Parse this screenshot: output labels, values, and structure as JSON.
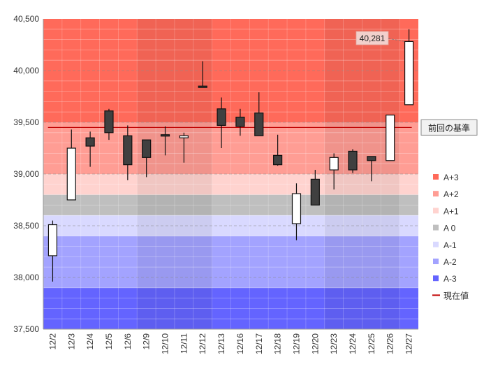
{
  "chart_data": {
    "type": "candlestick",
    "categories": [
      "12/2",
      "12/3",
      "12/4",
      "12/5",
      "12/6",
      "12/9",
      "12/10",
      "12/11",
      "12/12",
      "12/13",
      "12/16",
      "12/17",
      "12/18",
      "12/19",
      "12/20",
      "12/23",
      "12/24",
      "12/25",
      "12/26",
      "12/27"
    ],
    "ohlc": [
      {
        "open": 38210,
        "high": 38550,
        "low": 37960,
        "close": 38510
      },
      {
        "open": 38750,
        "high": 39430,
        "low": 38750,
        "close": 39250
      },
      {
        "open": 39350,
        "high": 39410,
        "low": 39070,
        "close": 39270
      },
      {
        "open": 39610,
        "high": 39630,
        "low": 39330,
        "close": 39400
      },
      {
        "open": 39370,
        "high": 39470,
        "low": 38940,
        "close": 39090
      },
      {
        "open": 39330,
        "high": 39330,
        "low": 38970,
        "close": 39160
      },
      {
        "open": 39380,
        "high": 39460,
        "low": 39180,
        "close": 39370
      },
      {
        "open": 39350,
        "high": 39400,
        "low": 39110,
        "close": 39370
      },
      {
        "open": 39850,
        "high": 40090,
        "low": 39840,
        "close": 39840
      },
      {
        "open": 39630,
        "high": 39740,
        "low": 39250,
        "close": 39470
      },
      {
        "open": 39550,
        "high": 39630,
        "low": 39370,
        "close": 39460
      },
      {
        "open": 39590,
        "high": 39790,
        "low": 39370,
        "close": 39370
      },
      {
        "open": 39180,
        "high": 39380,
        "low": 39080,
        "close": 39090
      },
      {
        "open": 38520,
        "high": 38910,
        "low": 38360,
        "close": 38810
      },
      {
        "open": 38950,
        "high": 39040,
        "low": 38700,
        "close": 38700
      },
      {
        "open": 39040,
        "high": 39200,
        "low": 38850,
        "close": 39160
      },
      {
        "open": 39220,
        "high": 39240,
        "low": 39010,
        "close": 39040
      },
      {
        "open": 39170,
        "high": 39170,
        "low": 38930,
        "close": 39130
      },
      {
        "open": 39130,
        "high": 39570,
        "low": 39130,
        "close": 39570
      },
      {
        "open": 39670,
        "high": 40400,
        "low": 39670,
        "close": 40281
      }
    ],
    "ylim": [
      37500,
      40500
    ],
    "y_ticks": [
      37500,
      38000,
      38500,
      39000,
      39500,
      40000,
      40500
    ],
    "y_tick_labels": [
      "37,500",
      "38,000",
      "38,500",
      "39,000",
      "39,500",
      "40,000",
      "40,500"
    ],
    "bands": [
      {
        "name": "A+3",
        "from": 39500,
        "to": 40500,
        "color": "#ff6a5a"
      },
      {
        "name": "A+2",
        "from": 39000,
        "to": 39500,
        "color": "#ff9d94"
      },
      {
        "name": "A+1",
        "from": 38800,
        "to": 39000,
        "color": "#ffd3cf"
      },
      {
        "name": "A 0",
        "from": 38600,
        "to": 38800,
        "color": "#bfbfbf"
      },
      {
        "name": "A-1",
        "from": 38400,
        "to": 38600,
        "color": "#d9d9ff"
      },
      {
        "name": "A-2",
        "from": 37900,
        "to": 38400,
        "color": "#a3a3ff"
      },
      {
        "name": "A-3",
        "from": 37500,
        "to": 37900,
        "color": "#6464ff"
      }
    ],
    "week_shading": [
      [
        5,
        9
      ],
      [
        15,
        19
      ]
    ],
    "reference_line": {
      "value": 39450,
      "label": "前回の基準",
      "color": "#c00000"
    },
    "current_value_label": "40,281",
    "legend": [
      {
        "label": "A+3",
        "kind": "box",
        "color": "#ff6a5a"
      },
      {
        "label": "A+2",
        "kind": "box",
        "color": "#ff9d94"
      },
      {
        "label": "A+1",
        "kind": "box",
        "color": "#ffd3cf"
      },
      {
        "label": "A 0",
        "kind": "box",
        "color": "#bfbfbf"
      },
      {
        "label": "A-1",
        "kind": "box",
        "color": "#d9d9ff"
      },
      {
        "label": "A-2",
        "kind": "box",
        "color": "#a3a3ff"
      },
      {
        "label": "A-3",
        "kind": "box",
        "color": "#6464ff"
      },
      {
        "label": "現在値",
        "kind": "line",
        "color": "#c00000"
      }
    ],
    "grid": true,
    "legend_position": "right"
  }
}
